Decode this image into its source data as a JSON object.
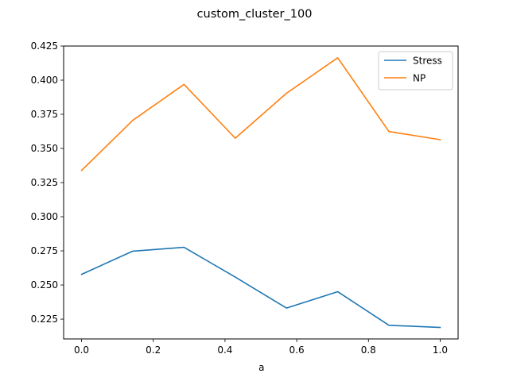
{
  "chart_data": {
    "type": "line",
    "title": "custom_cluster_100",
    "xlabel": "a",
    "ylabel": "",
    "xlim": [
      -0.05,
      1.05
    ],
    "ylim": [
      0.2105,
      0.425
    ],
    "x_ticks": [
      0.0,
      0.2,
      0.4,
      0.6,
      0.8,
      1.0
    ],
    "x_tick_labels": [
      "0.0",
      "0.2",
      "0.4",
      "0.6",
      "0.8",
      "1.0"
    ],
    "y_ticks": [
      0.225,
      0.25,
      0.275,
      0.3,
      0.325,
      0.35,
      0.375,
      0.4,
      0.425
    ],
    "y_tick_labels": [
      "0.225",
      "0.250",
      "0.275",
      "0.300",
      "0.325",
      "0.350",
      "0.375",
      "0.400",
      "0.425"
    ],
    "grid": false,
    "legend_position": "top-right",
    "x": [
      0.0,
      0.142857,
      0.285714,
      0.428571,
      0.571429,
      0.714286,
      0.857143,
      1.0
    ],
    "series": [
      {
        "name": "Stress",
        "color": "#1f77b4",
        "values": [
          0.2578,
          0.2748,
          0.2776,
          0.2558,
          0.2331,
          0.2451,
          0.2205,
          0.2189
        ]
      },
      {
        "name": "NP",
        "color": "#ff7f0e",
        "values": [
          0.3339,
          0.3706,
          0.3969,
          0.3575,
          0.3904,
          0.4164,
          0.3624,
          0.3564
        ]
      }
    ]
  }
}
